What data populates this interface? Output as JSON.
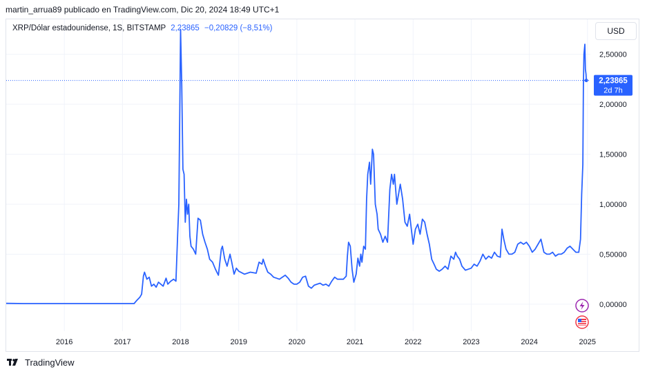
{
  "header": {
    "published_line": "martin_arrua89 publicado en TradingView.com, Dic 20, 2024 18:49 UTC+1"
  },
  "legend": {
    "symbol": "XRP/Dólar estadounidense, 1S, BITSTAMP",
    "last": "2,23865",
    "change": "−0,20829 (−8,51%)"
  },
  "currency_button": "USD",
  "price_badge": {
    "value": "2,23865",
    "countdown": "2d 7h"
  },
  "footer": {
    "brand": "TradingView"
  },
  "colors": {
    "line": "#2962ff",
    "badge": "#2962ff",
    "grid": "#f0f3fa"
  },
  "icons": [
    "lightning-icon",
    "us-flag-icon",
    "tradingview-logo-icon"
  ],
  "chart_data": {
    "type": "line",
    "title": "",
    "xlabel": "",
    "ylabel": "",
    "ylim": [
      -0.27,
      2.85
    ],
    "xlim": [
      2015.0,
      2025.05
    ],
    "y_ticks": [
      {
        "value": 0.0,
        "label": "0,00000"
      },
      {
        "value": 0.5,
        "label": "0,50000"
      },
      {
        "value": 1.0,
        "label": "1,00000"
      },
      {
        "value": 1.5,
        "label": "1,50000"
      },
      {
        "value": 2.0,
        "label": "2,00000"
      },
      {
        "value": 2.5,
        "label": "2,50000"
      }
    ],
    "x_ticks": [
      {
        "value": 2016,
        "label": "2016"
      },
      {
        "value": 2017,
        "label": "2017"
      },
      {
        "value": 2018,
        "label": "2018"
      },
      {
        "value": 2019,
        "label": "2019"
      },
      {
        "value": 2020,
        "label": "2020"
      },
      {
        "value": 2021,
        "label": "2021"
      },
      {
        "value": 2022,
        "label": "2022"
      },
      {
        "value": 2023,
        "label": "2023"
      },
      {
        "value": 2024,
        "label": "2024"
      },
      {
        "value": 2025,
        "label": "2025"
      }
    ],
    "series": [
      {
        "values": [
          [
            2015.0,
            0.008
          ],
          [
            2015.3,
            0.006
          ],
          [
            2015.6,
            0.006
          ],
          [
            2015.9,
            0.006
          ],
          [
            2016.2,
            0.006
          ],
          [
            2016.5,
            0.006
          ],
          [
            2016.8,
            0.006
          ],
          [
            2017.1,
            0.006
          ],
          [
            2017.2,
            0.006
          ],
          [
            2017.25,
            0.04
          ],
          [
            2017.3,
            0.07
          ],
          [
            2017.33,
            0.1
          ],
          [
            2017.36,
            0.28
          ],
          [
            2017.38,
            0.32
          ],
          [
            2017.42,
            0.25
          ],
          [
            2017.46,
            0.27
          ],
          [
            2017.5,
            0.18
          ],
          [
            2017.54,
            0.2
          ],
          [
            2017.58,
            0.17
          ],
          [
            2017.62,
            0.22
          ],
          [
            2017.66,
            0.2
          ],
          [
            2017.7,
            0.18
          ],
          [
            2017.75,
            0.26
          ],
          [
            2017.78,
            0.2
          ],
          [
            2017.83,
            0.23
          ],
          [
            2017.88,
            0.25
          ],
          [
            2017.92,
            0.23
          ],
          [
            2017.95,
            0.7
          ],
          [
            2017.97,
            1.0
          ],
          [
            2017.985,
            1.9
          ],
          [
            2018.0,
            2.75
          ],
          [
            2018.02,
            2.2
          ],
          [
            2018.04,
            1.35
          ],
          [
            2018.06,
            1.3
          ],
          [
            2018.08,
            0.82
          ],
          [
            2018.1,
            1.05
          ],
          [
            2018.12,
            0.9
          ],
          [
            2018.14,
            1.0
          ],
          [
            2018.16,
            0.68
          ],
          [
            2018.18,
            0.58
          ],
          [
            2018.22,
            0.55
          ],
          [
            2018.26,
            0.5
          ],
          [
            2018.3,
            0.86
          ],
          [
            2018.34,
            0.84
          ],
          [
            2018.38,
            0.7
          ],
          [
            2018.42,
            0.62
          ],
          [
            2018.46,
            0.55
          ],
          [
            2018.5,
            0.45
          ],
          [
            2018.55,
            0.42
          ],
          [
            2018.6,
            0.35
          ],
          [
            2018.65,
            0.29
          ],
          [
            2018.7,
            0.55
          ],
          [
            2018.72,
            0.58
          ],
          [
            2018.76,
            0.45
          ],
          [
            2018.8,
            0.38
          ],
          [
            2018.85,
            0.5
          ],
          [
            2018.88,
            0.42
          ],
          [
            2018.92,
            0.3
          ],
          [
            2018.96,
            0.36
          ],
          [
            2019.0,
            0.33
          ],
          [
            2019.1,
            0.3
          ],
          [
            2019.2,
            0.32
          ],
          [
            2019.3,
            0.31
          ],
          [
            2019.35,
            0.42
          ],
          [
            2019.4,
            0.4
          ],
          [
            2019.42,
            0.45
          ],
          [
            2019.46,
            0.38
          ],
          [
            2019.5,
            0.32
          ],
          [
            2019.55,
            0.3
          ],
          [
            2019.6,
            0.27
          ],
          [
            2019.65,
            0.26
          ],
          [
            2019.7,
            0.25
          ],
          [
            2019.8,
            0.29
          ],
          [
            2019.85,
            0.26
          ],
          [
            2019.9,
            0.22
          ],
          [
            2019.95,
            0.2
          ],
          [
            2020.0,
            0.2
          ],
          [
            2020.05,
            0.22
          ],
          [
            2020.1,
            0.27
          ],
          [
            2020.15,
            0.28
          ],
          [
            2020.2,
            0.18
          ],
          [
            2020.25,
            0.16
          ],
          [
            2020.3,
            0.19
          ],
          [
            2020.35,
            0.2
          ],
          [
            2020.4,
            0.21
          ],
          [
            2020.45,
            0.19
          ],
          [
            2020.5,
            0.2
          ],
          [
            2020.55,
            0.18
          ],
          [
            2020.6,
            0.23
          ],
          [
            2020.65,
            0.27
          ],
          [
            2020.7,
            0.25
          ],
          [
            2020.75,
            0.25
          ],
          [
            2020.8,
            0.25
          ],
          [
            2020.85,
            0.28
          ],
          [
            2020.87,
            0.48
          ],
          [
            2020.89,
            0.62
          ],
          [
            2020.92,
            0.58
          ],
          [
            2020.95,
            0.35
          ],
          [
            2020.98,
            0.22
          ],
          [
            2021.02,
            0.3
          ],
          [
            2021.05,
            0.46
          ],
          [
            2021.08,
            0.38
          ],
          [
            2021.1,
            0.5
          ],
          [
            2021.12,
            0.42
          ],
          [
            2021.15,
            0.58
          ],
          [
            2021.18,
            0.55
          ],
          [
            2021.2,
            1.05
          ],
          [
            2021.22,
            1.3
          ],
          [
            2021.25,
            1.42
          ],
          [
            2021.27,
            1.2
          ],
          [
            2021.3,
            1.55
          ],
          [
            2021.32,
            1.5
          ],
          [
            2021.35,
            1.0
          ],
          [
            2021.38,
            0.9
          ],
          [
            2021.4,
            0.75
          ],
          [
            2021.44,
            0.7
          ],
          [
            2021.48,
            0.62
          ],
          [
            2021.52,
            0.68
          ],
          [
            2021.56,
            0.62
          ],
          [
            2021.6,
            1.15
          ],
          [
            2021.63,
            1.3
          ],
          [
            2021.66,
            1.2
          ],
          [
            2021.68,
            1.3
          ],
          [
            2021.72,
            1.0
          ],
          [
            2021.75,
            1.1
          ],
          [
            2021.78,
            1.2
          ],
          [
            2021.82,
            1.05
          ],
          [
            2021.86,
            0.82
          ],
          [
            2021.9,
            0.78
          ],
          [
            2021.94,
            0.9
          ],
          [
            2021.97,
            0.75
          ],
          [
            2022.0,
            0.6
          ],
          [
            2022.04,
            0.75
          ],
          [
            2022.08,
            0.8
          ],
          [
            2022.12,
            0.7
          ],
          [
            2022.16,
            0.85
          ],
          [
            2022.2,
            0.82
          ],
          [
            2022.24,
            0.7
          ],
          [
            2022.28,
            0.6
          ],
          [
            2022.32,
            0.45
          ],
          [
            2022.36,
            0.4
          ],
          [
            2022.4,
            0.35
          ],
          [
            2022.45,
            0.33
          ],
          [
            2022.5,
            0.35
          ],
          [
            2022.55,
            0.38
          ],
          [
            2022.6,
            0.35
          ],
          [
            2022.65,
            0.48
          ],
          [
            2022.7,
            0.45
          ],
          [
            2022.73,
            0.52
          ],
          [
            2022.76,
            0.48
          ],
          [
            2022.8,
            0.45
          ],
          [
            2022.84,
            0.38
          ],
          [
            2022.9,
            0.34
          ],
          [
            2022.95,
            0.35
          ],
          [
            2023.0,
            0.36
          ],
          [
            2023.05,
            0.4
          ],
          [
            2023.1,
            0.38
          ],
          [
            2023.15,
            0.43
          ],
          [
            2023.2,
            0.5
          ],
          [
            2023.25,
            0.45
          ],
          [
            2023.3,
            0.48
          ],
          [
            2023.35,
            0.46
          ],
          [
            2023.4,
            0.52
          ],
          [
            2023.45,
            0.48
          ],
          [
            2023.5,
            0.47
          ],
          [
            2023.53,
            0.75
          ],
          [
            2023.56,
            0.65
          ],
          [
            2023.6,
            0.55
          ],
          [
            2023.65,
            0.5
          ],
          [
            2023.7,
            0.5
          ],
          [
            2023.75,
            0.52
          ],
          [
            2023.8,
            0.6
          ],
          [
            2023.85,
            0.62
          ],
          [
            2023.9,
            0.6
          ],
          [
            2023.95,
            0.62
          ],
          [
            2024.0,
            0.58
          ],
          [
            2024.05,
            0.52
          ],
          [
            2024.1,
            0.55
          ],
          [
            2024.15,
            0.6
          ],
          [
            2024.2,
            0.65
          ],
          [
            2024.25,
            0.52
          ],
          [
            2024.3,
            0.5
          ],
          [
            2024.35,
            0.5
          ],
          [
            2024.4,
            0.52
          ],
          [
            2024.45,
            0.48
          ],
          [
            2024.5,
            0.5
          ],
          [
            2024.55,
            0.5
          ],
          [
            2024.6,
            0.52
          ],
          [
            2024.65,
            0.56
          ],
          [
            2024.7,
            0.58
          ],
          [
            2024.75,
            0.55
          ],
          [
            2024.8,
            0.52
          ],
          [
            2024.85,
            0.52
          ],
          [
            2024.88,
            0.65
          ],
          [
            2024.9,
            1.1
          ],
          [
            2024.92,
            1.4
          ],
          [
            2024.93,
            2.2
          ],
          [
            2024.94,
            2.5
          ],
          [
            2024.955,
            2.6
          ],
          [
            2024.965,
            2.35
          ],
          [
            2024.975,
            2.3
          ],
          [
            2024.98,
            2.23865
          ]
        ]
      }
    ],
    "current_price": 2.23865
  }
}
